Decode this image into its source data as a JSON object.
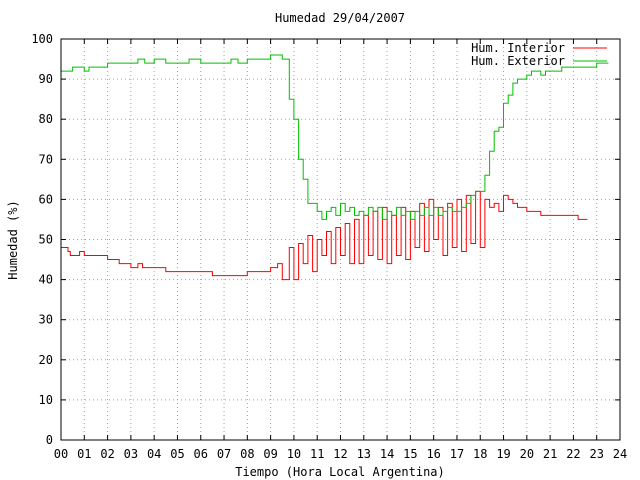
{
  "chart_data": {
    "type": "line",
    "title": "Humedad 29/04/2007",
    "xlabel": "Tiempo (Hora Local Argentina)",
    "ylabel": "Humedad (%)",
    "xlim": [
      0,
      24
    ],
    "ylim": [
      0,
      100
    ],
    "grid": true,
    "legend_position": "top-right",
    "x_ticks": [
      "00",
      "01",
      "02",
      "03",
      "04",
      "05",
      "06",
      "07",
      "08",
      "09",
      "10",
      "11",
      "12",
      "13",
      "14",
      "15",
      "16",
      "17",
      "18",
      "19",
      "20",
      "21",
      "22",
      "23",
      "24"
    ],
    "y_ticks": [
      "0",
      "10",
      "20",
      "30",
      "40",
      "50",
      "60",
      "70",
      "80",
      "90",
      "100"
    ],
    "series": [
      {
        "name": "Hum. Interior",
        "color": "#ff0000",
        "x": [
          0,
          0.3,
          0.4,
          0.8,
          1.0,
          1.2,
          1.5,
          2.0,
          2.3,
          2.5,
          2.8,
          3.0,
          3.3,
          3.5,
          3.8,
          4.0,
          4.5,
          5.0,
          5.5,
          6.0,
          6.5,
          7.0,
          7.5,
          8.0,
          8.5,
          9.0,
          9.3,
          9.5,
          9.8,
          10.0,
          10.2,
          10.4,
          10.6,
          10.8,
          11.0,
          11.2,
          11.4,
          11.6,
          11.8,
          12.0,
          12.2,
          12.4,
          12.6,
          12.8,
          13.0,
          13.2,
          13.4,
          13.6,
          13.8,
          14.0,
          14.2,
          14.4,
          14.6,
          14.8,
          15.0,
          15.2,
          15.4,
          15.6,
          15.8,
          16.0,
          16.2,
          16.4,
          16.6,
          16.8,
          17.0,
          17.2,
          17.4,
          17.6,
          17.8,
          18.0,
          18.2,
          18.4,
          18.6,
          18.8,
          19.0,
          19.2,
          19.4,
          19.6,
          19.8,
          20.0,
          20.3,
          20.6,
          21.0,
          21.4,
          21.8,
          22.2,
          22.6
        ],
        "values": [
          48,
          47,
          46,
          47,
          46,
          46,
          46,
          45,
          45,
          44,
          44,
          43,
          44,
          43,
          43,
          43,
          42,
          42,
          42,
          42,
          41,
          41,
          41,
          42,
          42,
          43,
          44,
          40,
          48,
          40,
          49,
          44,
          51,
          42,
          50,
          46,
          52,
          44,
          53,
          46,
          54,
          44,
          55,
          44,
          56,
          46,
          57,
          45,
          58,
          44,
          56,
          46,
          58,
          45,
          57,
          48,
          59,
          47,
          60,
          50,
          58,
          46,
          59,
          48,
          60,
          47,
          61,
          49,
          62,
          48,
          60,
          58,
          59,
          57,
          61,
          60,
          59,
          58,
          58,
          57,
          57,
          56,
          56,
          56,
          56,
          55,
          55
        ]
      },
      {
        "name": "Hum. Exterior",
        "color": "#00c000",
        "x": [
          0,
          0.4,
          0.5,
          1.0,
          1.2,
          1.5,
          2.0,
          2.5,
          3.0,
          3.3,
          3.6,
          4.0,
          4.5,
          5.0,
          5.5,
          6.0,
          6.5,
          7.0,
          7.3,
          7.6,
          8.0,
          8.5,
          9.0,
          9.3,
          9.5,
          9.8,
          10.0,
          10.2,
          10.4,
          10.6,
          10.8,
          11.0,
          11.2,
          11.4,
          11.6,
          11.8,
          12.0,
          12.2,
          12.4,
          12.6,
          12.8,
          13.0,
          13.2,
          13.4,
          13.6,
          13.8,
          14.0,
          14.2,
          14.4,
          14.6,
          14.8,
          15.0,
          15.2,
          15.4,
          15.6,
          15.8,
          16.0,
          16.2,
          16.4,
          16.6,
          16.8,
          17.0,
          17.2,
          17.4,
          17.6,
          17.8,
          18.0,
          18.2,
          18.4,
          18.6,
          18.8,
          19.0,
          19.2,
          19.4,
          19.6,
          19.8,
          20.0,
          20.2,
          20.4,
          20.6,
          20.8,
          21.0,
          21.5,
          22.0,
          22.5,
          23.0,
          23.5
        ],
        "values": [
          92,
          92,
          93,
          92,
          93,
          93,
          94,
          94,
          94,
          95,
          94,
          95,
          94,
          94,
          95,
          94,
          94,
          94,
          95,
          94,
          95,
          95,
          96,
          96,
          95,
          85,
          80,
          70,
          65,
          59,
          59,
          57,
          55,
          57,
          58,
          56,
          59,
          57,
          58,
          56,
          57,
          56,
          58,
          57,
          58,
          55,
          57,
          56,
          58,
          56,
          57,
          55,
          57,
          56,
          58,
          56,
          58,
          56,
          57,
          58,
          57,
          57,
          58,
          59,
          61,
          62,
          62,
          66,
          72,
          77,
          78,
          84,
          86,
          89,
          90,
          90,
          91,
          92,
          92,
          91,
          92,
          92,
          93,
          93,
          93,
          94,
          94
        ]
      }
    ]
  }
}
